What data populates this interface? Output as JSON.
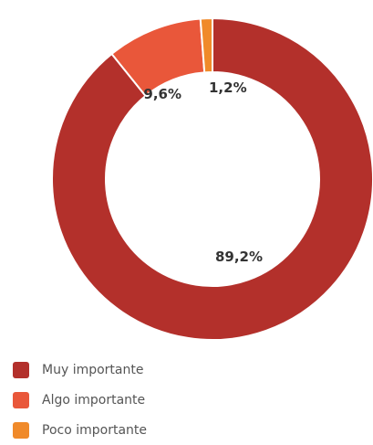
{
  "chart_data": {
    "type": "pie",
    "style": "donut",
    "categories": [
      "Muy importante",
      "Algo importante",
      "Poco importante"
    ],
    "values": [
      89.2,
      9.6,
      1.2
    ],
    "value_labels": [
      "89,2%",
      "9,6%",
      "1,2%"
    ],
    "colors": [
      "#b3302b",
      "#e9573a",
      "#f08a2a"
    ],
    "start": "top, clockwise",
    "legend_position": "bottom-left"
  }
}
